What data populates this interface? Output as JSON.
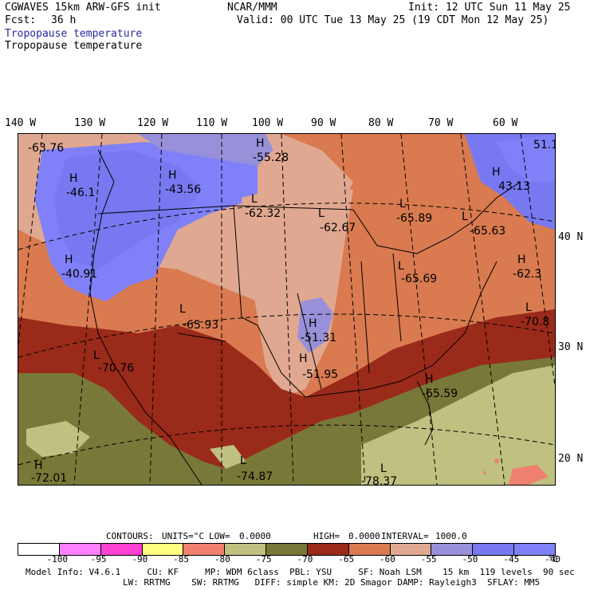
{
  "header": {
    "model_title": "CGWAVES 15km ARW-GFS init",
    "forecast_label": "Fcst:",
    "forecast_value": "36 h",
    "org": "NCAR/MMM",
    "init": "Init: 12 UTC Sun 11 May 25",
    "valid": "Valid: 00 UTC Tue 13 May 25 (19 CDT Mon 12 May 25)",
    "field_title_1": "Tropopause temperature",
    "field_title_2": "Tropopause temperature"
  },
  "longitude_labels": [
    "140 W",
    "130 W",
    "120 W",
    "110 W",
    "100 W",
    "90 W",
    "80 W",
    "70 W",
    "60 W"
  ],
  "latitude_labels": [
    "40 N",
    "30 N",
    "20 N"
  ],
  "map_labels": [
    {
      "letter": "",
      "value": "-63.76"
    },
    {
      "letter": "H",
      "value": "-55.28"
    },
    {
      "letter": "",
      "value": "51.1"
    },
    {
      "letter": "H",
      "value": "-46.1"
    },
    {
      "letter": "H",
      "value": "-43.56"
    },
    {
      "letter": "H",
      "value": "43.13"
    },
    {
      "letter": "L",
      "value": "-62.32"
    },
    {
      "letter": "L",
      "value": "-62.67"
    },
    {
      "letter": "L",
      "value": "-65.89"
    },
    {
      "letter": "L",
      "value": "-65.63"
    },
    {
      "letter": "H",
      "value": "-40.91"
    },
    {
      "letter": "L",
      "value": "-65.69"
    },
    {
      "letter": "H",
      "value": "-62.3"
    },
    {
      "letter": "L",
      "value": "-65.93"
    },
    {
      "letter": "L",
      "value": "-70.8"
    },
    {
      "letter": "H",
      "value": "-51.31"
    },
    {
      "letter": "L",
      "value": "-70.76"
    },
    {
      "letter": "H",
      "value": "-51.95"
    },
    {
      "letter": "H",
      "value": "-65.59"
    },
    {
      "letter": "H",
      "value": "-72.01"
    },
    {
      "letter": "L",
      "value": "-74.87"
    },
    {
      "letter": "L",
      "value": "-78.37"
    }
  ],
  "contours": {
    "label": "CONTOURS:",
    "units": "UNITS=°C",
    "low": "LOW=",
    "low_value": "0.0000",
    "high": "HIGH=",
    "high_value": "0.0000",
    "interval": "INTERVAL=",
    "interval_value": "1000.0"
  },
  "colorbar": {
    "colors": [
      "#ffffff",
      "#ff80ff",
      "#ff40d0",
      "#ffff80",
      "#f08070",
      "#c0c080",
      "#787838",
      "#9a2a1a",
      "#d97a50",
      "#e0a890",
      "#9890d8",
      "#7878f0",
      "#8080f8"
    ],
    "labels": [
      "-100",
      "-95",
      "-90",
      "-85",
      "-80",
      "-75",
      "-70",
      "-65",
      "-60",
      "-55",
      "-50",
      "-45",
      "-40"
    ],
    "unit": "°C"
  },
  "footer": {
    "line1": "Model Info: V4.6.1     CU: KF     MP: WDM 6class  PBL: YSU     SF: Noah LSM    15 km  119 levels  90 sec",
    "line2": "LW: RRTMG    SW: RRTMG   DIFF: simple KM: 2D Smagor DAMP: Rayleigh3  SFLAY: MM5"
  }
}
